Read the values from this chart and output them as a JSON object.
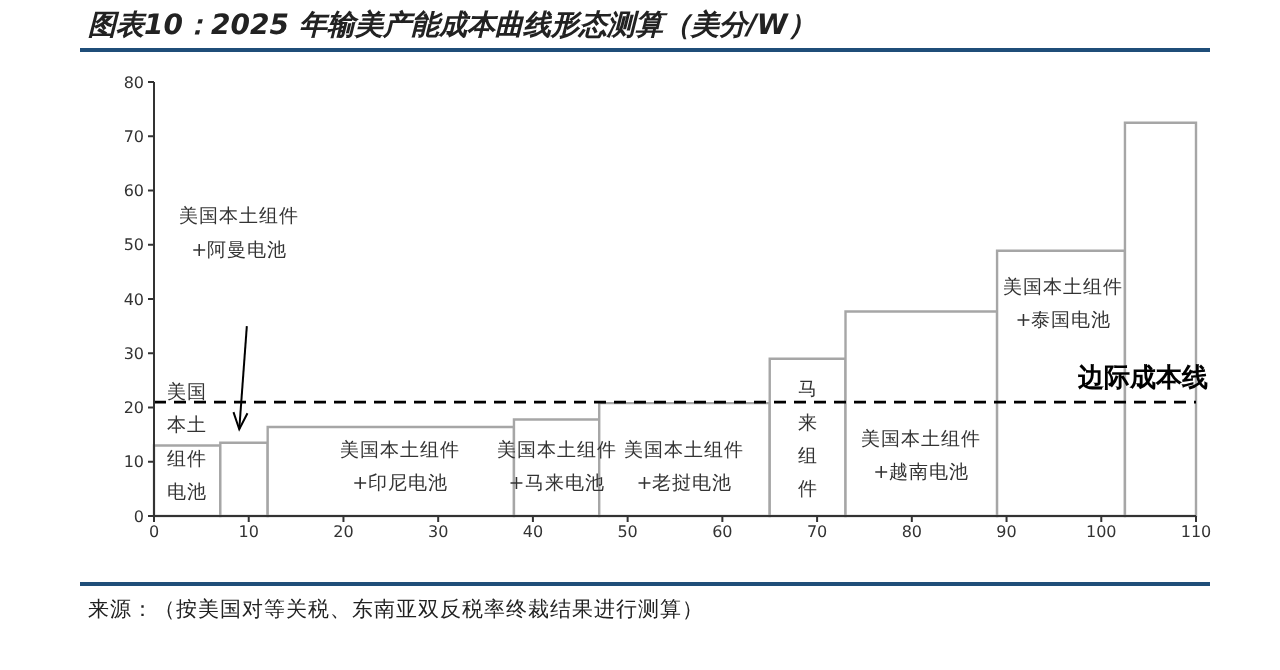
{
  "chart_data": {
    "type": "histogram",
    "title": "图表10：2025 年输美产能成本曲线形态测算（美分/W）",
    "bins": [
      0,
      7,
      12,
      38,
      47,
      65,
      73,
      89,
      102.5,
      110
    ],
    "values": [
      13,
      13.5,
      16.4,
      17.8,
      20.8,
      29,
      37.7,
      48.9,
      72.5
    ],
    "color": "#a6a6a6",
    "xlim": [
      0,
      110
    ],
    "xticks": [
      0,
      10,
      20,
      30,
      40,
      50,
      60,
      70,
      80,
      90,
      100,
      110
    ],
    "ylim": [
      0,
      80
    ],
    "yticks": [
      0,
      10,
      20,
      30,
      40,
      50,
      60,
      70,
      80
    ],
    "ref_lines": [
      {
        "axis": "y",
        "value": 21,
        "label": "边际成本线",
        "line_style": "dashed",
        "color": "#000000"
      }
    ],
    "annotations": [
      "美国本土组件电池",
      "美国本土组件+阿曼电池",
      "美国本土组件+印尼电池",
      "美国本土组件+马来电池",
      "美国本土组件+老挝电池",
      "马来组件",
      "美国本土组件+越南电池",
      "美国本土组件+泰国电池",
      "来源：（按美国对等关税、东南亚双反税率终裁结果进行测算）"
    ]
  }
}
